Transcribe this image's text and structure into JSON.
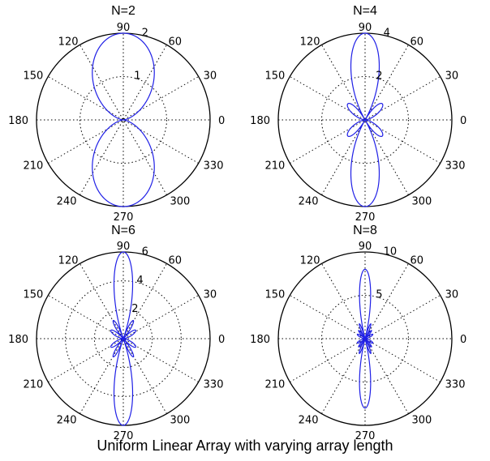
{
  "caption": "Uniform Linear Array with varying array length",
  "colors": {
    "pattern": "#1f1fe6",
    "frame": "#000000",
    "grid": "#000000"
  },
  "chart_data": [
    {
      "type": "polar",
      "title": "N=2",
      "array_elements": 2,
      "rlim": [
        0,
        2
      ],
      "radial_ticks": [
        "1",
        "2"
      ],
      "angle_ticks": [
        "0",
        "30",
        "60",
        "90",
        "120",
        "150",
        "180",
        "210",
        "240",
        "270",
        "300",
        "330"
      ],
      "grid": true
    },
    {
      "type": "polar",
      "title": "N=4",
      "array_elements": 4,
      "rlim": [
        0,
        4
      ],
      "radial_ticks": [
        "2",
        "4"
      ],
      "angle_ticks": [
        "0",
        "30",
        "60",
        "90",
        "120",
        "150",
        "180",
        "210",
        "240",
        "270",
        "300",
        "330"
      ],
      "grid": true
    },
    {
      "type": "polar",
      "title": "N=6",
      "array_elements": 6,
      "rlim": [
        0,
        6
      ],
      "radial_ticks": [
        "2",
        "4",
        "6"
      ],
      "angle_ticks": [
        "0",
        "30",
        "60",
        "90",
        "120",
        "150",
        "180",
        "210",
        "240",
        "270",
        "300",
        "330"
      ],
      "grid": true
    },
    {
      "type": "polar",
      "title": "N=8",
      "array_elements": 8,
      "rlim": [
        0,
        10
      ],
      "radial_ticks": [
        "5",
        "10"
      ],
      "angle_ticks": [
        "0",
        "30",
        "60",
        "90",
        "120",
        "150",
        "180",
        "210",
        "240",
        "270",
        "300",
        "330"
      ],
      "grid": true
    }
  ]
}
